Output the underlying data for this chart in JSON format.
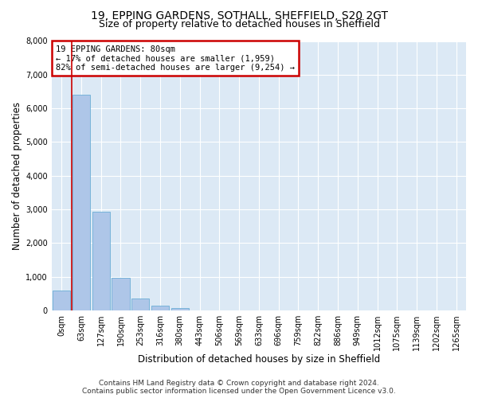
{
  "title1": "19, EPPING GARDENS, SOTHALL, SHEFFIELD, S20 2GT",
  "title2": "Size of property relative to detached houses in Sheffield",
  "xlabel": "Distribution of detached houses by size in Sheffield",
  "ylabel": "Number of detached properties",
  "footer1": "Contains HM Land Registry data © Crown copyright and database right 2024.",
  "footer2": "Contains public sector information licensed under the Open Government Licence v3.0.",
  "bar_labels": [
    "0sqm",
    "63sqm",
    "127sqm",
    "190sqm",
    "253sqm",
    "316sqm",
    "380sqm",
    "443sqm",
    "506sqm",
    "569sqm",
    "633sqm",
    "696sqm",
    "759sqm",
    "822sqm",
    "886sqm",
    "949sqm",
    "1012sqm",
    "1075sqm",
    "1139sqm",
    "1202sqm",
    "1265sqm"
  ],
  "bar_values": [
    600,
    6400,
    2920,
    960,
    350,
    150,
    70,
    0,
    0,
    0,
    0,
    0,
    0,
    0,
    0,
    0,
    0,
    0,
    0,
    0,
    0
  ],
  "bar_color": "#aec6e8",
  "bar_edge_color": "#6baed6",
  "property_line_color": "#cc0000",
  "annotation_text": "19 EPPING GARDENS: 80sqm\n← 17% of detached houses are smaller (1,959)\n82% of semi-detached houses are larger (9,254) →",
  "annotation_box_color": "white",
  "annotation_box_edge_color": "#cc0000",
  "ylim": [
    0,
    8000
  ],
  "yticks": [
    0,
    1000,
    2000,
    3000,
    4000,
    5000,
    6000,
    7000,
    8000
  ],
  "background_color": "#dce9f5",
  "grid_color": "white",
  "title_fontsize": 10,
  "subtitle_fontsize": 9,
  "axis_label_fontsize": 8.5,
  "tick_fontsize": 7,
  "footer_fontsize": 6.5
}
